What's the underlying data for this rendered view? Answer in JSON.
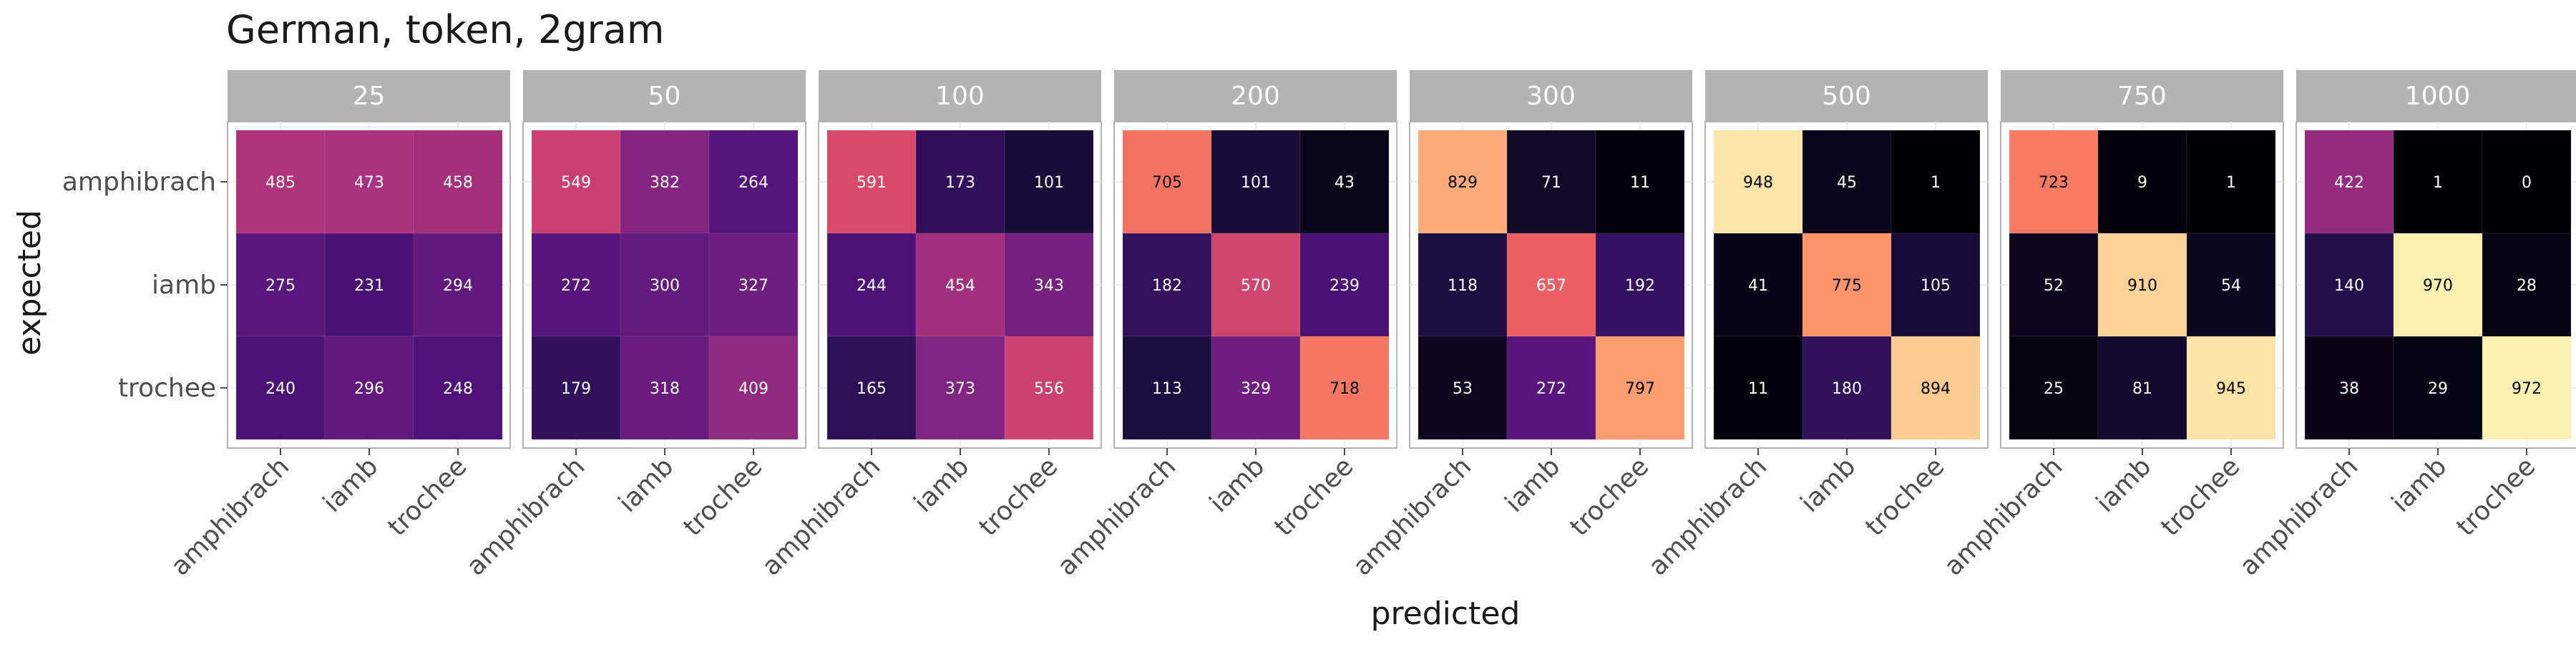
{
  "chart_data": {
    "type": "heatmap",
    "title": "German, token, 2gram",
    "xlabel": "predicted",
    "ylabel": "expected",
    "x_categories": [
      "amphibrach",
      "iamb",
      "trochee"
    ],
    "y_categories": [
      "amphibrach",
      "iamb",
      "trochee"
    ],
    "color_scale": "magma",
    "color_domain": [
      0,
      1000
    ],
    "panels": [
      {
        "label": "25",
        "values": [
          [
            485,
            473,
            458
          ],
          [
            275,
            231,
            294
          ],
          [
            240,
            296,
            248
          ]
        ]
      },
      {
        "label": "50",
        "values": [
          [
            549,
            382,
            264
          ],
          [
            272,
            300,
            327
          ],
          [
            179,
            318,
            409
          ]
        ]
      },
      {
        "label": "100",
        "values": [
          [
            591,
            173,
            101
          ],
          [
            244,
            454,
            343
          ],
          [
            165,
            373,
            556
          ]
        ]
      },
      {
        "label": "200",
        "values": [
          [
            705,
            101,
            43
          ],
          [
            182,
            570,
            239
          ],
          [
            113,
            329,
            718
          ]
        ]
      },
      {
        "label": "300",
        "values": [
          [
            829,
            71,
            11
          ],
          [
            118,
            657,
            192
          ],
          [
            53,
            272,
            797
          ]
        ]
      },
      {
        "label": "500",
        "values": [
          [
            948,
            45,
            1
          ],
          [
            41,
            775,
            105
          ],
          [
            11,
            180,
            894
          ]
        ]
      },
      {
        "label": "750",
        "values": [
          [
            723,
            9,
            1
          ],
          [
            52,
            910,
            54
          ],
          [
            25,
            81,
            945
          ]
        ]
      },
      {
        "label": "1000",
        "values": [
          [
            422,
            1,
            0
          ],
          [
            140,
            970,
            28
          ],
          [
            38,
            29,
            972
          ]
        ]
      }
    ]
  }
}
